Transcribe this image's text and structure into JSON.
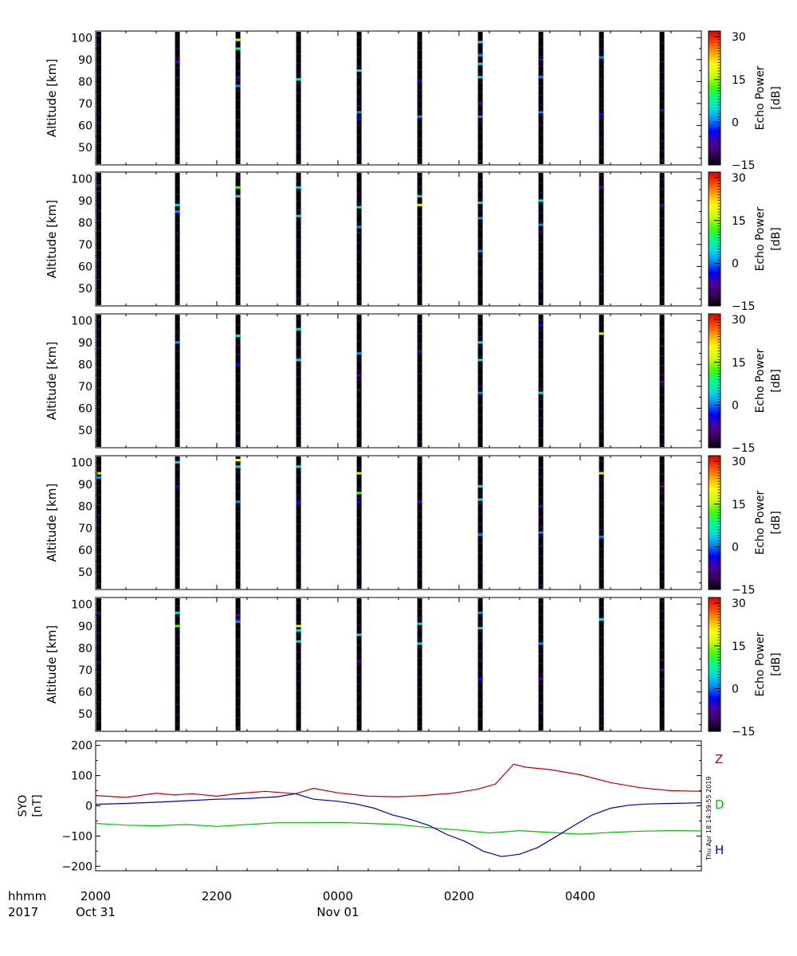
{
  "chart_data": [
    {
      "type": "heatmap",
      "ylabel": "Altitude [km]",
      "ylim": [
        42,
        103
      ],
      "yticks": [
        50,
        60,
        70,
        80,
        90,
        100
      ],
      "colorbar": {
        "label": [
          "Echo Power",
          "[dB]"
        ],
        "ticks": [
          30,
          15,
          0,
          -15
        ],
        "range": [
          -15,
          32
        ]
      },
      "beam_times_h": [
        20.0,
        21.35,
        22.35,
        23.35,
        24.35,
        25.35,
        26.35,
        27.35,
        28.35,
        29.35
      ],
      "echoes": [
        {
          "t": 21.35,
          "alt": 89,
          "db": -8
        },
        {
          "t": 22.35,
          "alt": 99,
          "db": 16
        },
        {
          "t": 22.35,
          "alt": 95,
          "db": 10
        },
        {
          "t": 22.35,
          "alt": 82,
          "db": -6
        },
        {
          "t": 22.35,
          "alt": 78,
          "db": 2
        },
        {
          "t": 23.35,
          "alt": 81,
          "db": 3
        },
        {
          "t": 24.35,
          "alt": 85,
          "db": 3
        },
        {
          "t": 24.35,
          "alt": 66,
          "db": 2
        },
        {
          "t": 24.35,
          "alt": 63,
          "db": -5
        },
        {
          "t": 25.35,
          "alt": 80,
          "db": -2
        },
        {
          "t": 25.35,
          "alt": 64,
          "db": 1
        },
        {
          "t": 26.35,
          "alt": 98,
          "db": 4
        },
        {
          "t": 26.35,
          "alt": 92,
          "db": 0
        },
        {
          "t": 26.35,
          "alt": 88,
          "db": 6
        },
        {
          "t": 26.35,
          "alt": 82,
          "db": 3
        },
        {
          "t": 26.35,
          "alt": 70,
          "db": -6
        },
        {
          "t": 26.35,
          "alt": 64,
          "db": 2
        },
        {
          "t": 27.35,
          "alt": 90,
          "db": -7
        },
        {
          "t": 27.35,
          "alt": 82,
          "db": 2
        },
        {
          "t": 27.35,
          "alt": 66,
          "db": 1
        },
        {
          "t": 28.35,
          "alt": 91,
          "db": 2
        },
        {
          "t": 28.35,
          "alt": 65,
          "db": -3
        },
        {
          "t": 29.35,
          "alt": 67,
          "db": -8
        }
      ]
    },
    {
      "type": "heatmap",
      "ylabel": "Altitude [km]",
      "ylim": [
        42,
        103
      ],
      "yticks": [
        50,
        60,
        70,
        80,
        90,
        100
      ],
      "colorbar": {
        "label": [
          "Echo Power",
          "[dB]"
        ],
        "ticks": [
          30,
          15,
          0,
          -15
        ],
        "range": [
          -15,
          32
        ]
      },
      "beam_times_h": [
        20.0,
        21.35,
        22.35,
        23.35,
        24.35,
        25.35,
        26.35,
        27.35,
        28.35,
        29.35
      ],
      "echoes": [
        {
          "t": 20.0,
          "alt": 97,
          "db": -8
        },
        {
          "t": 21.35,
          "alt": 88,
          "db": 4
        },
        {
          "t": 21.35,
          "alt": 85,
          "db": 2
        },
        {
          "t": 22.35,
          "alt": 96,
          "db": 14
        },
        {
          "t": 22.35,
          "alt": 92,
          "db": 5
        },
        {
          "t": 23.35,
          "alt": 96,
          "db": 3
        },
        {
          "t": 23.35,
          "alt": 83,
          "db": 4
        },
        {
          "t": 24.35,
          "alt": 87,
          "db": 3
        },
        {
          "t": 24.35,
          "alt": 78,
          "db": 1
        },
        {
          "t": 25.35,
          "alt": 92,
          "db": 4
        },
        {
          "t": 25.35,
          "alt": 88,
          "db": 17
        },
        {
          "t": 26.35,
          "alt": 89,
          "db": 5
        },
        {
          "t": 26.35,
          "alt": 82,
          "db": 1
        },
        {
          "t": 26.35,
          "alt": 67,
          "db": 2
        },
        {
          "t": 27.35,
          "alt": 90,
          "db": 3
        },
        {
          "t": 27.35,
          "alt": 79,
          "db": 2
        },
        {
          "t": 28.35,
          "alt": 96,
          "db": -6
        },
        {
          "t": 29.35,
          "alt": 88,
          "db": -8
        }
      ]
    },
    {
      "type": "heatmap",
      "ylabel": "Altitude [km]",
      "ylim": [
        42,
        103
      ],
      "yticks": [
        50,
        60,
        70,
        80,
        90,
        100
      ],
      "colorbar": {
        "label": [
          "Echo Power",
          "[dB]"
        ],
        "ticks": [
          30,
          15,
          0,
          -15
        ],
        "range": [
          -15,
          32
        ]
      },
      "beam_times_h": [
        20.0,
        21.35,
        22.35,
        23.35,
        24.35,
        25.35,
        26.35,
        27.35,
        28.35,
        29.35
      ],
      "echoes": [
        {
          "t": 21.35,
          "alt": 90,
          "db": 2
        },
        {
          "t": 22.35,
          "alt": 93,
          "db": 3
        },
        {
          "t": 22.35,
          "alt": 80,
          "db": -5
        },
        {
          "t": 23.35,
          "alt": 96,
          "db": 4
        },
        {
          "t": 23.35,
          "alt": 82,
          "db": 3
        },
        {
          "t": 24.35,
          "alt": 85,
          "db": 1
        },
        {
          "t": 24.35,
          "alt": 75,
          "db": -6
        },
        {
          "t": 25.35,
          "alt": 86,
          "db": -7
        },
        {
          "t": 26.35,
          "alt": 90,
          "db": 3
        },
        {
          "t": 26.35,
          "alt": 82,
          "db": 6
        },
        {
          "t": 26.35,
          "alt": 67,
          "db": 2
        },
        {
          "t": 27.35,
          "alt": 98,
          "db": -5
        },
        {
          "t": 27.35,
          "alt": 67,
          "db": 3
        },
        {
          "t": 28.35,
          "alt": 94,
          "db": 16
        },
        {
          "t": 29.35,
          "alt": 72,
          "db": -8
        }
      ]
    },
    {
      "type": "heatmap",
      "ylabel": "Altitude [km]",
      "ylim": [
        42,
        103
      ],
      "yticks": [
        50,
        60,
        70,
        80,
        90,
        100
      ],
      "colorbar": {
        "label": [
          "Echo Power",
          "[dB]"
        ],
        "ticks": [
          30,
          15,
          0,
          -15
        ],
        "range": [
          -15,
          32
        ]
      },
      "beam_times_h": [
        20.0,
        21.35,
        22.35,
        23.35,
        24.35,
        25.35,
        26.35,
        27.35,
        28.35,
        29.35
      ],
      "echoes": [
        {
          "t": 20.0,
          "alt": 95,
          "db": 18
        },
        {
          "t": 20.0,
          "alt": 93,
          "db": 2
        },
        {
          "t": 21.35,
          "alt": 100,
          "db": 4
        },
        {
          "t": 21.35,
          "alt": 89,
          "db": -4
        },
        {
          "t": 22.35,
          "alt": 101,
          "db": 20
        },
        {
          "t": 22.35,
          "alt": 98,
          "db": 3
        },
        {
          "t": 22.35,
          "alt": 82,
          "db": 1
        },
        {
          "t": 23.35,
          "alt": 98,
          "db": 3
        },
        {
          "t": 23.35,
          "alt": 82,
          "db": -5
        },
        {
          "t": 24.35,
          "alt": 95,
          "db": 17
        },
        {
          "t": 24.35,
          "alt": 86,
          "db": 12
        },
        {
          "t": 24.35,
          "alt": 82,
          "db": -5
        },
        {
          "t": 25.35,
          "alt": 82,
          "db": -7
        },
        {
          "t": 26.35,
          "alt": 89,
          "db": 3
        },
        {
          "t": 26.35,
          "alt": 83,
          "db": 4
        },
        {
          "t": 26.35,
          "alt": 67,
          "db": 1
        },
        {
          "t": 27.35,
          "alt": 80,
          "db": -6
        },
        {
          "t": 27.35,
          "alt": 68,
          "db": 2
        },
        {
          "t": 28.35,
          "alt": 95,
          "db": 18
        },
        {
          "t": 28.35,
          "alt": 66,
          "db": 1
        },
        {
          "t": 29.35,
          "alt": 89,
          "db": -7
        }
      ]
    },
    {
      "type": "heatmap",
      "ylabel": "Altitude [km]",
      "ylim": [
        42,
        103
      ],
      "yticks": [
        50,
        60,
        70,
        80,
        90,
        100
      ],
      "colorbar": {
        "label": [
          "Echo Power",
          "[dB]"
        ],
        "ticks": [
          30,
          15,
          0,
          -15
        ],
        "range": [
          -15,
          32
        ]
      },
      "beam_times_h": [
        20.0,
        21.35,
        22.35,
        23.35,
        24.35,
        25.35,
        26.35,
        27.35,
        28.35,
        29.35
      ],
      "echoes": [
        {
          "t": 20.0,
          "alt": 96,
          "db": -8
        },
        {
          "t": 21.35,
          "alt": 96,
          "db": 3
        },
        {
          "t": 21.35,
          "alt": 90,
          "db": 14
        },
        {
          "t": 22.35,
          "alt": 95,
          "db": -6
        },
        {
          "t": 22.35,
          "alt": 92,
          "db": 2
        },
        {
          "t": 23.35,
          "alt": 90,
          "db": 16
        },
        {
          "t": 23.35,
          "alt": 88,
          "db": 6
        },
        {
          "t": 23.35,
          "alt": 83,
          "db": 4
        },
        {
          "t": 24.35,
          "alt": 86,
          "db": 3
        },
        {
          "t": 24.35,
          "alt": 74,
          "db": -6
        },
        {
          "t": 25.35,
          "alt": 91,
          "db": 4
        },
        {
          "t": 25.35,
          "alt": 82,
          "db": 5
        },
        {
          "t": 26.35,
          "alt": 96,
          "db": 2
        },
        {
          "t": 26.35,
          "alt": 89,
          "db": 4
        },
        {
          "t": 26.35,
          "alt": 66,
          "db": -4
        },
        {
          "t": 27.35,
          "alt": 82,
          "db": 2
        },
        {
          "t": 27.35,
          "alt": 66,
          "db": -6
        },
        {
          "t": 28.35,
          "alt": 93,
          "db": 4
        },
        {
          "t": 29.35,
          "alt": 70,
          "db": -8
        }
      ]
    },
    {
      "type": "line",
      "ylabel": [
        "SYO",
        "[nT]"
      ],
      "ylim": [
        -215,
        215
      ],
      "yticks": [
        200,
        100,
        0,
        -100,
        -200
      ],
      "series": [
        {
          "name": "Z",
          "color": "#c00000",
          "x": [
            20.0,
            20.5,
            21.0,
            21.3,
            21.6,
            22.0,
            22.4,
            22.8,
            23.3,
            23.6,
            24.0,
            24.5,
            25.0,
            25.4,
            25.9,
            26.3,
            26.6,
            26.9,
            27.1,
            27.5,
            28.0,
            28.5,
            29.0,
            29.5,
            30.0
          ],
          "y": [
            34,
            28,
            42,
            36,
            40,
            32,
            42,
            48,
            40,
            58,
            43,
            32,
            30,
            34,
            42,
            55,
            72,
            138,
            128,
            120,
            103,
            77,
            60,
            50,
            48
          ]
        },
        {
          "name": "D",
          "color": "#00c000",
          "x": [
            20.0,
            20.5,
            21.0,
            21.5,
            22.0,
            22.5,
            23.0,
            23.5,
            24.0,
            24.5,
            25.0,
            25.5,
            26.0,
            26.5,
            27.0,
            27.5,
            28.0,
            28.5,
            29.0,
            29.5,
            30.0
          ],
          "y": [
            -58,
            -64,
            -66,
            -62,
            -68,
            -62,
            -56,
            -56,
            -55,
            -58,
            -62,
            -72,
            -80,
            -90,
            -82,
            -88,
            -94,
            -88,
            -84,
            -82,
            -83
          ]
        },
        {
          "name": "H",
          "color": "#0000b0",
          "x": [
            20.0,
            20.5,
            21.0,
            21.5,
            22.0,
            22.5,
            23.0,
            23.3,
            23.6,
            24.0,
            24.3,
            24.6,
            24.9,
            25.2,
            25.5,
            25.8,
            26.1,
            26.4,
            26.7,
            27.0,
            27.3,
            27.6,
            27.9,
            28.2,
            28.5,
            28.8,
            29.1,
            29.5,
            30.0
          ],
          "y": [
            5,
            8,
            12,
            17,
            22,
            24,
            30,
            40,
            22,
            15,
            6,
            -8,
            -30,
            -45,
            -65,
            -95,
            -118,
            -150,
            -168,
            -160,
            -138,
            -102,
            -65,
            -30,
            -8,
            2,
            6,
            8,
            10
          ]
        }
      ]
    }
  ],
  "x_axis": {
    "xlim": [
      20.0,
      30.0
    ],
    "ticks": [
      {
        "value": 20.0,
        "label": "2000",
        "date": "Oct 31"
      },
      {
        "value": 22.0,
        "label": "2200",
        "date": ""
      },
      {
        "value": 24.0,
        "label": "0000",
        "date": "Nov 01"
      },
      {
        "value": 26.0,
        "label": "0200",
        "date": ""
      },
      {
        "value": 28.0,
        "label": "0400",
        "date": ""
      }
    ],
    "row_labels": [
      "hhmm",
      "2017"
    ]
  },
  "timestamp": "Thu Apr 18 14:39:55 2019",
  "colorbar_palette": [
    "#000000",
    "#3b0060",
    "#4a00a0",
    "#0000ff",
    "#0088ff",
    "#00dddd",
    "#00ff88",
    "#44ff00",
    "#ccff00",
    "#ffff00",
    "#ffaa00",
    "#ff4400",
    "#dd0000"
  ]
}
